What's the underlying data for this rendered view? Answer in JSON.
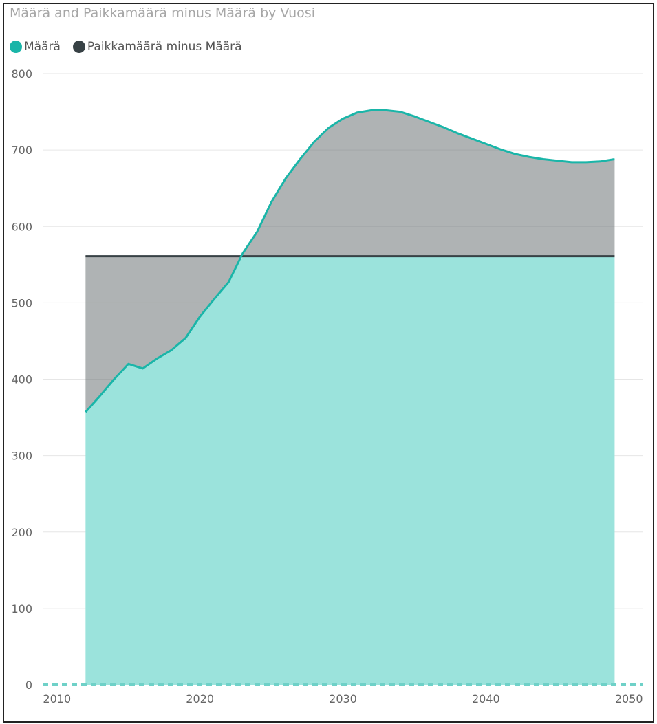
{
  "chart_data": {
    "type": "area",
    "title": "Määrä and Paikkamäärä minus Määrä by Vuosi",
    "xlabel": "",
    "ylabel": "",
    "xlim": [
      2009,
      2051
    ],
    "ylim": [
      0,
      800
    ],
    "x_ticks": [
      2010,
      2020,
      2030,
      2040,
      2050
    ],
    "y_ticks": [
      0,
      100,
      200,
      300,
      400,
      500,
      600,
      700,
      800
    ],
    "grid": true,
    "legend_position": "top-left",
    "series": [
      {
        "name": "Määrä",
        "color": "#1ab5a8",
        "fill": "#9be3dc",
        "x": [
          2012,
          2013,
          2014,
          2015,
          2016,
          2017,
          2018,
          2019,
          2020,
          2021,
          2022,
          2023,
          2024,
          2025,
          2026,
          2027,
          2028,
          2029,
          2030,
          2031,
          2032,
          2033,
          2034,
          2035,
          2036,
          2037,
          2038,
          2039,
          2040,
          2041,
          2042,
          2043,
          2044,
          2045,
          2046,
          2047,
          2048,
          2049
        ],
        "values": [
          357,
          378,
          400,
          420,
          414,
          427,
          438,
          454,
          482,
          505,
          527,
          565,
          593,
          632,
          663,
          688,
          711,
          729,
          741,
          749,
          752,
          752,
          750,
          744,
          737,
          730,
          722,
          715,
          708,
          701,
          695,
          691,
          688,
          686,
          684,
          684,
          685,
          688
        ]
      },
      {
        "name": "Paikkamäärä minus Määrä",
        "color": "#374145",
        "fill": "#6d7476",
        "x": [
          2012,
          2049
        ],
        "values": [
          561,
          561
        ]
      }
    ]
  }
}
